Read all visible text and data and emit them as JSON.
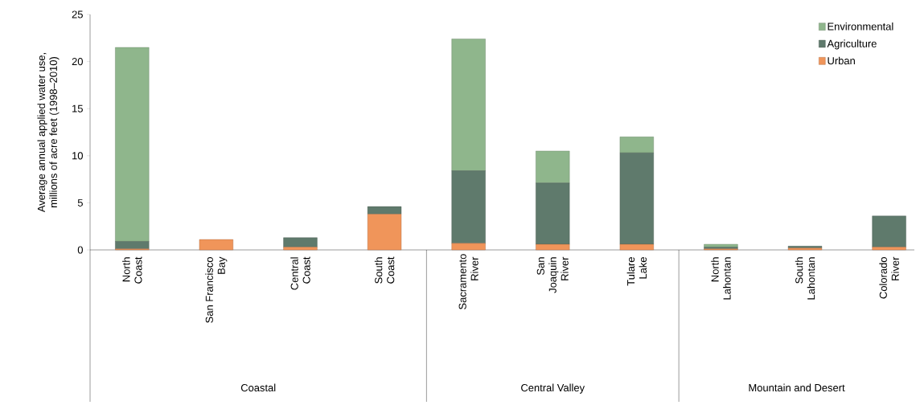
{
  "chart_data": {
    "type": "bar",
    "stacked": true,
    "ylabel": "Average annual applied water use, millions of acre feet (1998–2010)",
    "categories": [
      "North Coast",
      "San Francisco Bay",
      "Central Coast",
      "South Coast",
      "Sacramento River",
      "San Joaquin River",
      "Tulare Lake",
      "North Lahontan",
      "South Lahontan",
      "Colorado River"
    ],
    "series": [
      {
        "name": "Urban",
        "color": "#f0955a",
        "values": [
          0.1,
          1.1,
          0.3,
          3.8,
          0.7,
          0.6,
          0.6,
          0.1,
          0.2,
          0.3
        ]
      },
      {
        "name": "Agriculture",
        "color": "#5f7a6c",
        "values": [
          0.8,
          0,
          1.0,
          0.8,
          7.7,
          6.5,
          9.7,
          0.2,
          0.2,
          3.3
        ]
      },
      {
        "name": "Environmental",
        "color": "#8fb68c",
        "values": [
          20.6,
          0,
          0,
          0,
          14.0,
          3.4,
          1.7,
          0.3,
          0,
          0
        ]
      }
    ],
    "ylim": [
      0,
      25
    ],
    "yticks": [
      0,
      5,
      10,
      15,
      20,
      25
    ],
    "grid": false,
    "legend": "top right",
    "annotations": [
      "Coastal",
      "Central Valley",
      "Mountain and Desert"
    ]
  }
}
